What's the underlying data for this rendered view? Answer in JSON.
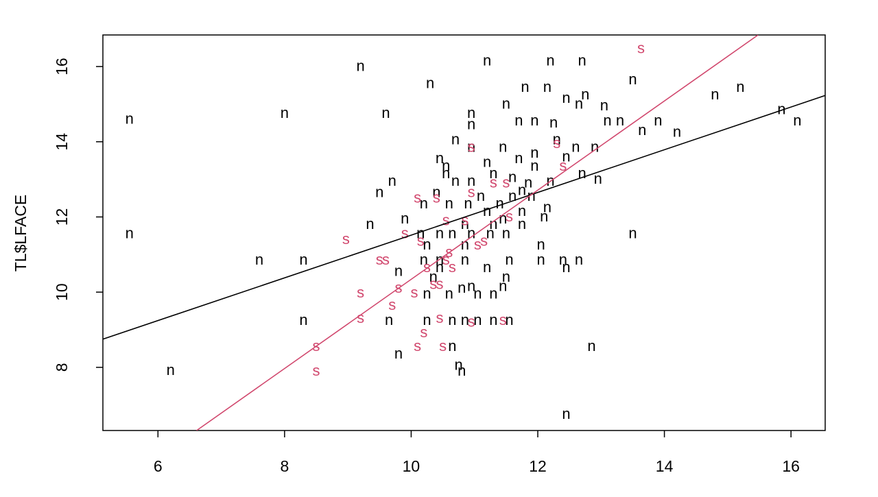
{
  "chart_data": {
    "type": "scatter",
    "ylabel": "TL$LFACE",
    "xlim": [
      5.13,
      16.54
    ],
    "ylim": [
      6.32,
      16.84
    ],
    "xticks": [
      6,
      8,
      10,
      12,
      14,
      16
    ],
    "yticks": [
      8,
      10,
      12,
      14,
      16
    ],
    "series": [
      {
        "name": "n",
        "color": "#000000",
        "x": [
          5.55,
          5.55,
          6.2,
          7.6,
          8.0,
          8.3,
          8.3,
          9.2,
          10.3,
          9.6,
          11.2,
          12.2,
          12.7,
          11.8,
          12.15,
          13.5,
          14.8,
          15.2,
          15.85,
          16.1,
          14.2,
          13.9,
          13.65,
          13.3,
          13.1,
          13.05,
          12.75,
          12.45,
          12.65,
          11.5,
          10.95,
          10.95,
          10.7,
          10.45,
          10.55,
          10.95,
          11.45,
          11.7,
          11.95,
          11.95,
          12.3,
          12.6,
          12.9,
          12.45,
          12.7,
          12.95,
          12.2,
          11.7,
          11.95,
          12.25,
          9.7,
          9.5,
          9.35,
          9.9,
          10.2,
          10.4,
          10.55,
          10.7,
          10.95,
          11.2,
          11.3,
          11.6,
          11.75,
          11.9,
          11.1,
          10.9,
          10.6,
          11.2,
          11.45,
          11.75,
          12.15,
          12.1,
          10.15,
          10.45,
          10.65,
          10.95,
          11.25,
          11.5,
          11.75,
          11.3,
          10.85,
          10.25,
          10.85,
          12.05,
          13.5,
          10.2,
          10.45,
          10.85,
          11.55,
          12.05,
          12.4,
          12.65,
          12.45,
          11.2,
          9.8,
          10.45,
          10.35,
          11.5,
          11.45,
          10.95,
          10.25,
          10.6,
          11.05,
          11.3,
          10.8,
          9.65,
          10.25,
          10.65,
          10.85,
          11.05,
          11.3,
          11.55,
          9.8,
          10.65,
          12.85,
          10.75,
          10.8,
          12.45,
          11.6,
          11.4,
          11.85
        ],
        "y": [
          14.55,
          11.5,
          7.87,
          10.8,
          14.7,
          10.8,
          9.2,
          15.95,
          15.5,
          14.7,
          16.1,
          16.1,
          16.1,
          15.4,
          15.4,
          15.6,
          15.2,
          15.4,
          14.8,
          14.5,
          14.2,
          14.5,
          14.25,
          14.5,
          14.5,
          14.9,
          15.2,
          15.1,
          14.95,
          14.95,
          14.7,
          14.4,
          14.0,
          13.5,
          13.3,
          13.8,
          13.8,
          13.5,
          13.65,
          13.3,
          14.0,
          13.8,
          13.8,
          13.55,
          13.1,
          12.95,
          12.9,
          14.5,
          14.5,
          14.45,
          12.9,
          12.6,
          11.75,
          11.9,
          12.3,
          12.6,
          13.1,
          12.9,
          12.9,
          13.4,
          13.1,
          13.0,
          12.65,
          12.5,
          12.5,
          12.3,
          12.3,
          12.1,
          11.9,
          12.1,
          12.2,
          11.95,
          11.5,
          11.5,
          11.5,
          11.5,
          11.5,
          11.5,
          11.75,
          11.75,
          11.75,
          11.2,
          11.2,
          11.2,
          11.5,
          10.8,
          10.8,
          10.8,
          10.8,
          10.8,
          10.8,
          10.8,
          10.6,
          10.6,
          10.5,
          10.6,
          10.35,
          10.35,
          10.1,
          10.1,
          9.9,
          9.9,
          9.9,
          9.9,
          10.05,
          9.2,
          9.2,
          9.2,
          9.2,
          9.2,
          9.2,
          9.2,
          8.3,
          8.5,
          8.5,
          8.0,
          7.85,
          6.7,
          12.5,
          12.3,
          12.85
        ]
      },
      {
        "name": "s",
        "color": "#d1486e",
        "x": [
          13.63,
          8.97,
          8.5,
          8.5,
          9.2,
          9.2,
          9.5,
          9.6,
          9.7,
          9.8,
          10.05,
          10.1,
          10.2,
          10.1,
          10.4,
          9.9,
          10.15,
          10.25,
          10.45,
          10.55,
          10.6,
          10.65,
          10.45,
          10.5,
          10.95,
          11.05,
          11.15,
          10.85,
          10.55,
          10.95,
          11.3,
          11.5,
          11.55,
          10.95,
          12.3,
          12.4,
          11.45,
          10.35
        ],
        "y": [
          16.43,
          11.35,
          8.5,
          7.85,
          9.93,
          9.25,
          10.8,
          10.8,
          9.6,
          10.05,
          9.93,
          8.5,
          8.87,
          12.45,
          12.45,
          11.5,
          11.3,
          10.6,
          10.15,
          10.8,
          11.0,
          10.6,
          9.25,
          8.5,
          9.15,
          11.2,
          11.3,
          11.85,
          11.85,
          12.6,
          12.85,
          12.85,
          11.95,
          13.8,
          13.9,
          13.3,
          9.2,
          10.15
        ]
      }
    ],
    "fits": [
      {
        "color": "#000000",
        "x": [
          5.13,
          16.54
        ],
        "y": [
          8.75,
          15.23
        ]
      },
      {
        "color": "#d1486e",
        "x": [
          6.61,
          15.48
        ],
        "y": [
          6.32,
          16.84
        ]
      }
    ]
  }
}
